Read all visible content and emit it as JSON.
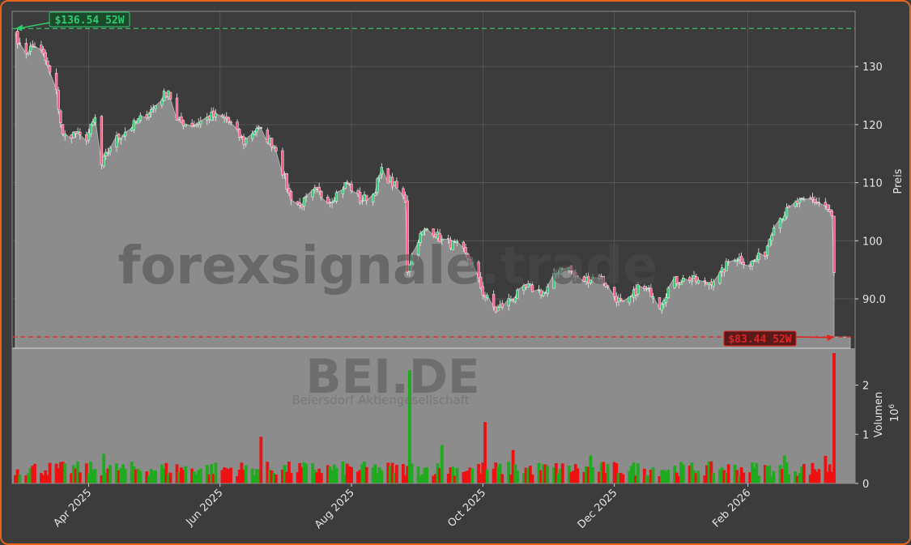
{
  "chart_data": [
    {
      "type": "candlestick",
      "ylabel": "Preis",
      "ylim": [
        81.5,
        139.5
      ],
      "yticks": [
        90,
        100,
        110,
        120,
        130
      ],
      "ytick_labels": [
        "90.0",
        "100",
        "110",
        "120",
        "130"
      ],
      "grid": true,
      "x_tick_labels": [
        "Apr 2025",
        "Jun 2025",
        "Aug 2025",
        "Oct 2025",
        "Dec 2025",
        "Feb 2026"
      ],
      "x_tick_dates": [
        "2025-04-01",
        "2025-06-01",
        "2025-08-01",
        "2025-10-01",
        "2025-12-01",
        "2026-02-01"
      ],
      "date_range": [
        "2025-02-26",
        "2026-02-27"
      ],
      "close_anchors": [
        [
          "2025-02-26",
          136.0
        ],
        [
          "2025-03-01",
          132.0
        ],
        [
          "2025-03-08",
          134.0
        ],
        [
          "2025-03-12",
          131.0
        ],
        [
          "2025-03-17",
          125.5
        ],
        [
          "2025-03-20",
          118.0
        ],
        [
          "2025-03-26",
          118.5
        ],
        [
          "2025-03-30",
          117.0
        ],
        [
          "2025-04-04",
          121.0
        ],
        [
          "2025-04-07",
          113.0
        ],
        [
          "2025-04-12",
          117.0
        ],
        [
          "2025-04-22",
          120.0
        ],
        [
          "2025-04-30",
          122.5
        ],
        [
          "2025-05-08",
          126.0
        ],
        [
          "2025-05-12",
          120.5
        ],
        [
          "2025-05-20",
          120.0
        ],
        [
          "2025-05-28",
          121.5
        ],
        [
          "2025-06-04",
          121.0
        ],
        [
          "2025-06-12",
          117.0
        ],
        [
          "2025-06-18",
          119.5
        ],
        [
          "2025-06-27",
          116.0
        ],
        [
          "2025-07-03",
          108.0
        ],
        [
          "2025-07-08",
          106.0
        ],
        [
          "2025-07-15",
          108.5
        ],
        [
          "2025-07-22",
          107.0
        ],
        [
          "2025-07-30",
          110.0
        ],
        [
          "2025-08-05",
          107.0
        ],
        [
          "2025-08-11",
          108.0
        ],
        [
          "2025-08-15",
          112.0
        ],
        [
          "2025-08-22",
          109.0
        ],
        [
          "2025-08-26",
          107.0
        ],
        [
          "2025-08-27",
          95.0
        ],
        [
          "2025-08-31",
          100.0
        ],
        [
          "2025-09-06",
          102.5
        ],
        [
          "2025-09-12",
          100.0
        ],
        [
          "2025-09-20",
          99.0
        ],
        [
          "2025-09-26",
          96.0
        ],
        [
          "2025-10-01",
          91.0
        ],
        [
          "2025-10-07",
          88.0
        ],
        [
          "2025-10-14",
          90.0
        ],
        [
          "2025-10-22",
          92.0
        ],
        [
          "2025-10-30",
          91.0
        ],
        [
          "2025-11-05",
          95.0
        ],
        [
          "2025-11-08",
          96.0
        ],
        [
          "2025-11-15",
          93.0
        ],
        [
          "2025-11-24",
          94.0
        ],
        [
          "2025-12-01",
          90.5
        ],
        [
          "2025-12-06",
          88.5
        ],
        [
          "2025-12-12",
          92.0
        ],
        [
          "2025-12-19",
          91.0
        ],
        [
          "2025-12-22",
          89.0
        ],
        [
          "2025-12-28",
          93.0
        ],
        [
          "2026-01-05",
          93.5
        ],
        [
          "2026-01-12",
          92.5
        ],
        [
          "2026-01-19",
          94.0
        ],
        [
          "2026-01-25",
          97.5
        ],
        [
          "2026-02-02",
          96.0
        ],
        [
          "2026-02-09",
          98.0
        ],
        [
          "2026-02-13",
          103.0
        ],
        [
          "2026-02-19",
          105.0
        ],
        [
          "2026-02-24",
          106.5
        ],
        [
          "2026-03-03",
          107.0
        ],
        [
          "2026-03-09",
          106.0
        ],
        [
          "2026-03-12",
          104.0
        ],
        [
          "2026-03-13",
          94.5
        ]
      ],
      "annotations": [
        {
          "text": "$136.54 52W",
          "date": "2025-02-26",
          "value": 136.54,
          "color": "#2ecc71"
        },
        {
          "text": "$83.44 52W",
          "date": "2026-03-13",
          "value": 83.44,
          "color": "#e02424"
        }
      ],
      "reference_lines": [
        {
          "value": 136.54,
          "color": "#3ec36a",
          "style": "dashed"
        },
        {
          "value": 83.44,
          "color": "#e03030",
          "style": "dashed"
        }
      ],
      "up_color": "#2ecc71",
      "down_color": "#ff5b87",
      "area_color": "#8c8c8c"
    },
    {
      "type": "bar",
      "ylabel": "Volumen",
      "scale_label": "10^6",
      "ylim": [
        0,
        2.75
      ],
      "yticks": [
        0,
        1,
        2
      ],
      "ytick_labels": [
        "0",
        "1",
        "2"
      ],
      "up_color": "#1faa1f",
      "down_color": "#ee1111",
      "typical_range": [
        0.15,
        0.45
      ],
      "spikes": [
        {
          "date": "2025-03-16",
          "value": 0.7
        },
        {
          "date": "2025-03-23",
          "value": 0.6
        },
        {
          "date": "2025-04-08",
          "value": 0.6
        },
        {
          "date": "2025-06-20",
          "value": 0.95
        },
        {
          "date": "2025-08-28",
          "value": 2.3
        },
        {
          "date": "2025-09-12",
          "value": 0.78
        },
        {
          "date": "2025-10-02",
          "value": 1.25
        },
        {
          "date": "2025-10-15",
          "value": 0.68
        },
        {
          "date": "2025-11-08",
          "value": 0.78
        },
        {
          "date": "2025-11-20",
          "value": 0.57
        },
        {
          "date": "2026-01-10",
          "value": 0.56
        },
        {
          "date": "2026-02-18",
          "value": 0.57
        },
        {
          "date": "2026-03-09",
          "value": 0.56
        },
        {
          "date": "2026-03-13",
          "value": 2.65
        }
      ]
    }
  ],
  "watermark": {
    "site": "forexsignale.trade",
    "ticker": "BEI.DE",
    "company": "Beiersdorf Aktiengesellschaft"
  }
}
